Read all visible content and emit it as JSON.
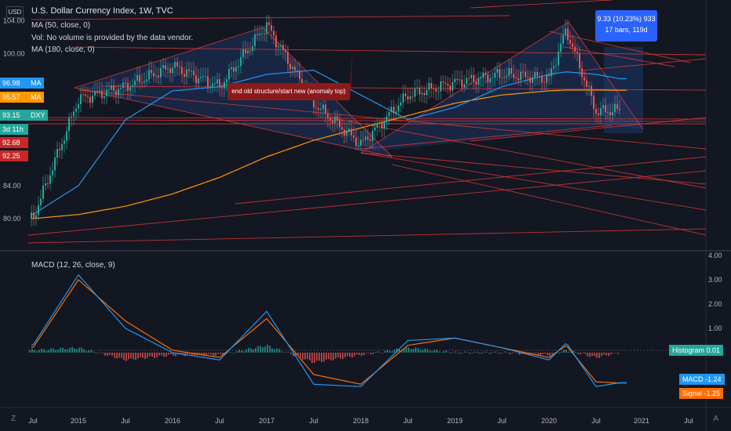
{
  "legend": {
    "title": "U.S. Dollar Currency Index, 1W, TVC",
    "ma50": "MA (50, close, 0)",
    "vol": "Vol: No volume is provided by the data vendor.",
    "ma180": "MA (180, close, 0)",
    "macd": "MACD (12, 26, close, 9)"
  },
  "currency_badge": "USD",
  "annotation": "end old structure/start new (anomaly top)",
  "measure": {
    "line1": "9.33 (10.23%) 933",
    "line2": "17 bars, 119d"
  },
  "left_axis_ticks": [
    "104.00",
    "100.00",
    "84.00",
    "80.00"
  ],
  "left_labels": [
    {
      "value": "96.98",
      "suffix": "MA",
      "color": "#2196f3"
    },
    {
      "value": "95.57",
      "suffix": "MA",
      "color": "#ff9800"
    },
    {
      "value": "93.15",
      "suffix": "DXY",
      "color": "#26a69a"
    },
    {
      "value": "3d 11h",
      "suffix": "",
      "color": "#26a69a"
    },
    {
      "value": "92.68",
      "suffix": "",
      "color": "#c62828"
    },
    {
      "value": "92.25",
      "suffix": "",
      "color": "#c62828"
    }
  ],
  "macd_axis_ticks": [
    "4.00",
    "3.00",
    "2.00",
    "1.00"
  ],
  "macd_labels": [
    {
      "name": "Histogram",
      "value": "0.01",
      "color": "#26a69a"
    },
    {
      "name": "MACD",
      "value": "-1.24",
      "color": "#2196f3"
    },
    {
      "name": "Signal",
      "value": "-1.25",
      "color": "#ff6d00"
    }
  ],
  "time_axis": [
    "Jul",
    "2015",
    "Jul",
    "2016",
    "Jul",
    "2017",
    "Jul",
    "2018",
    "Jul",
    "2019",
    "Jul",
    "2020",
    "Jul",
    "2021",
    "Jul"
  ],
  "footer": {
    "left": "Z",
    "right": "A"
  },
  "chart_data": [
    {
      "type": "line",
      "title": "U.S. Dollar Currency Index, 1W, TVC",
      "x": [
        "2014-07",
        "2015-01",
        "2015-07",
        "2016-01",
        "2016-07",
        "2017-01",
        "2017-07",
        "2018-01",
        "2018-07",
        "2019-01",
        "2019-07",
        "2020-01",
        "2020-03",
        "2020-07",
        "2020-10"
      ],
      "series": [
        {
          "name": "DXY",
          "values": [
            80.0,
            94.5,
            96.0,
            98.5,
            96.0,
            103.5,
            94.0,
            89.0,
            95.0,
            96.5,
            97.5,
            97.0,
            102.9,
            93.0,
            93.15
          ]
        },
        {
          "name": "MA (50, close, 0)",
          "values": [
            80.5,
            84.0,
            92.0,
            95.5,
            96.0,
            97.5,
            98.0,
            95.0,
            92.0,
            93.5,
            96.0,
            97.5,
            97.8,
            97.5,
            96.98
          ]
        },
        {
          "name": "MA (180, close, 0)",
          "values": [
            80.0,
            80.5,
            81.5,
            83.0,
            85.0,
            87.5,
            89.5,
            91.0,
            92.5,
            94.0,
            95.0,
            95.5,
            95.6,
            95.6,
            95.57
          ]
        }
      ],
      "ylim": [
        78,
        105
      ],
      "ylabel": "USD",
      "grid": false
    },
    {
      "type": "line",
      "title": "MACD (12, 26, close, 9)",
      "x": [
        "2014-07",
        "2015-01",
        "2015-07",
        "2016-01",
        "2016-07",
        "2017-01",
        "2017-07",
        "2018-01",
        "2018-07",
        "2019-01",
        "2019-07",
        "2020-01",
        "2020-03",
        "2020-07",
        "2020-10"
      ],
      "series": [
        {
          "name": "MACD",
          "values": [
            0.3,
            3.2,
            1.0,
            0.0,
            -0.3,
            1.7,
            -1.3,
            -1.4,
            0.5,
            0.6,
            0.2,
            -0.3,
            0.4,
            -1.4,
            -1.24
          ]
        },
        {
          "name": "Signal",
          "values": [
            0.2,
            3.0,
            1.3,
            0.1,
            -0.2,
            1.4,
            -0.9,
            -1.3,
            0.3,
            0.6,
            0.2,
            -0.2,
            0.3,
            -1.2,
            -1.25
          ]
        },
        {
          "name": "Histogram",
          "values": [
            0.1,
            0.2,
            -0.3,
            -0.1,
            -0.1,
            0.3,
            -0.4,
            -0.1,
            0.2,
            0.0,
            0.0,
            -0.1,
            0.1,
            -0.2,
            0.01
          ]
        }
      ],
      "ylim": [
        -2,
        4
      ],
      "grid": false
    }
  ]
}
